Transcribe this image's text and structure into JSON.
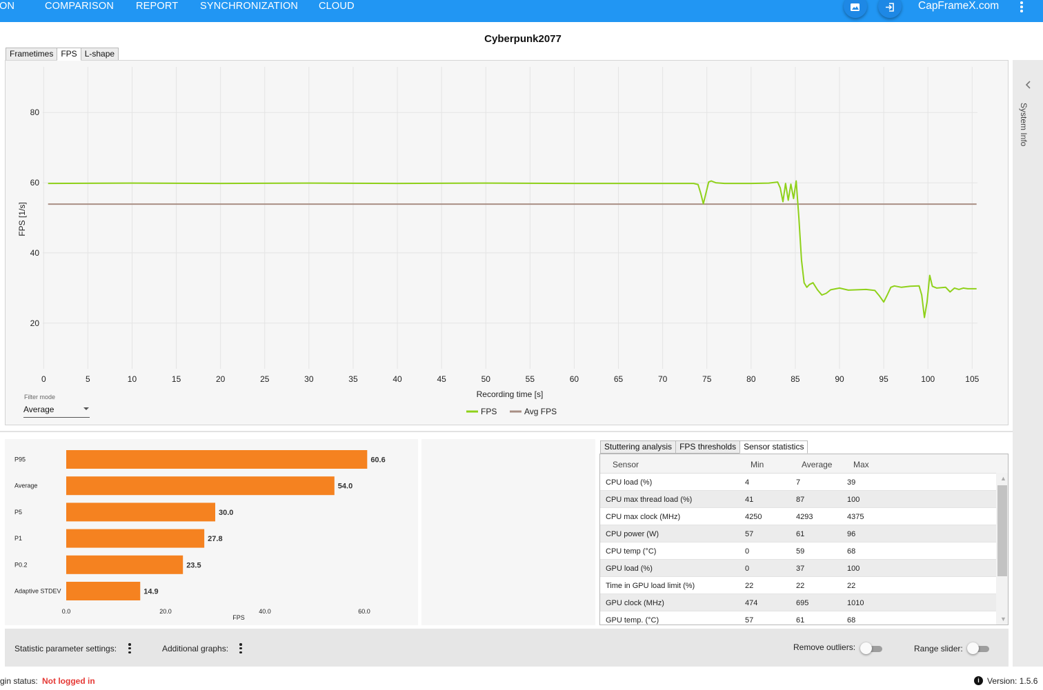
{
  "nav": {
    "items": [
      "ON",
      "COMPARISON",
      "REPORT",
      "SYNCHRONIZATION",
      "CLOUD"
    ],
    "brand": "CapFrameX.com",
    "icons": [
      "screenshot-icon",
      "login-icon",
      "more-vertical-icon"
    ]
  },
  "title": "Cyberpunk2077",
  "chart_tabs": [
    "Frametimes",
    "FPS",
    "L-shape"
  ],
  "chart_tabs_active": "FPS",
  "side_panel": {
    "label": "System Info"
  },
  "filter": {
    "label": "Filter mode",
    "value": "Average"
  },
  "chart_data": [
    {
      "type": "line",
      "title": "",
      "xlabel": "Recording time [s]",
      "ylabel": "FPS [1/s]",
      "xlim": [
        0,
        106
      ],
      "ylim": [
        7,
        93
      ],
      "xticks": [
        0,
        5,
        10,
        15,
        20,
        25,
        30,
        35,
        40,
        45,
        50,
        55,
        60,
        65,
        70,
        75,
        80,
        85,
        90,
        95,
        100,
        105
      ],
      "yticks": [
        20,
        40,
        60,
        80
      ],
      "grid": true,
      "legend": "bottom-center",
      "series": [
        {
          "name": "FPS",
          "color": "#8fd11a",
          "x": [
            0.5,
            10,
            20,
            30,
            40,
            50,
            60,
            70,
            73.5,
            74,
            74.3,
            74.6,
            74.9,
            75.2,
            75.5,
            76,
            77,
            78,
            80,
            82,
            83,
            83.3,
            83.6,
            83.9,
            84.2,
            84.5,
            84.8,
            85.1,
            85.4,
            85.7,
            86,
            86.3,
            86.6,
            87,
            87.5,
            88,
            88.5,
            89,
            90,
            91,
            92,
            93,
            94,
            94.5,
            95,
            95.4,
            95.8,
            96.2,
            97,
            98,
            99,
            99.3,
            99.6,
            99.9,
            100.2,
            100.5,
            101,
            102,
            102.5,
            103,
            103.5,
            104,
            104.5,
            105.5
          ],
          "y": [
            59.8,
            59.9,
            59.8,
            59.9,
            59.8,
            59.9,
            59.8,
            59.8,
            59.8,
            59.5,
            57,
            54,
            57,
            60.2,
            60.5,
            60,
            59.8,
            59.8,
            59.8,
            59.9,
            60.2,
            58.5,
            54.6,
            59.8,
            55,
            59.6,
            55.5,
            60.5,
            50,
            38,
            31.5,
            30.2,
            31,
            31.5,
            29.5,
            28,
            28.5,
            29.5,
            30,
            29.4,
            29.5,
            29.6,
            29.3,
            27.8,
            26,
            28,
            30.2,
            30.6,
            30.2,
            30.5,
            30.6,
            28,
            21.6,
            26,
            33.6,
            30.5,
            30,
            30.2,
            28.9,
            30,
            29.6,
            30,
            29.8,
            29.8
          ]
        },
        {
          "name": "Avg FPS",
          "color": "#a88e84",
          "x": [
            0.5,
            105.5
          ],
          "y": [
            53.9,
            53.9
          ]
        }
      ]
    },
    {
      "type": "bar",
      "orientation": "horizontal",
      "xlabel": "FPS",
      "xlim": [
        0,
        70
      ],
      "xticks": [
        0,
        20,
        40,
        60
      ],
      "xtick_labels": [
        "0.0",
        "20.0",
        "40.0",
        "60.0"
      ],
      "color": "#f58220",
      "categories": [
        "P95",
        "Average",
        "P5",
        "P1",
        "P0.2",
        "Adaptive STDEV"
      ],
      "values": [
        60.6,
        54.0,
        30.0,
        27.8,
        23.5,
        14.9
      ],
      "value_labels": [
        "60.6",
        "54.0",
        "30.0",
        "27.8",
        "23.5",
        "14.9"
      ]
    }
  ],
  "sensor_tabs": [
    "Stuttering analysis",
    "FPS thresholds",
    "Sensor statistics"
  ],
  "sensor_tabs_active": "Sensor statistics",
  "sensor_table": {
    "headers": [
      "Sensor",
      "Min",
      "Average",
      "Max"
    ],
    "rows": [
      [
        "CPU load (%)",
        "4",
        "7",
        "39"
      ],
      [
        "CPU max thread load (%)",
        "41",
        "87",
        "100"
      ],
      [
        "CPU max clock (MHz)",
        "4250",
        "4293",
        "4375"
      ],
      [
        "CPU power (W)",
        "57",
        "61",
        "96"
      ],
      [
        "CPU temp (°C)",
        "0",
        "59",
        "68"
      ],
      [
        "GPU load (%)",
        "0",
        "37",
        "100"
      ],
      [
        "Time in GPU load limit (%)",
        "22",
        "22",
        "22"
      ],
      [
        "GPU clock (MHz)",
        "474",
        "695",
        "1010"
      ],
      [
        "GPU temp. (°C)",
        "57",
        "61",
        "68"
      ]
    ]
  },
  "bottom": {
    "statistic_settings": "Statistic parameter settings:",
    "additional_graphs": "Additional graphs:",
    "remove_outliers": "Remove outliers:",
    "range_slider": "Range slider:"
  },
  "status": {
    "label": "gin status:",
    "value": "Not logged in",
    "version": "Version:  1.5.6",
    "info_icon": "i"
  }
}
